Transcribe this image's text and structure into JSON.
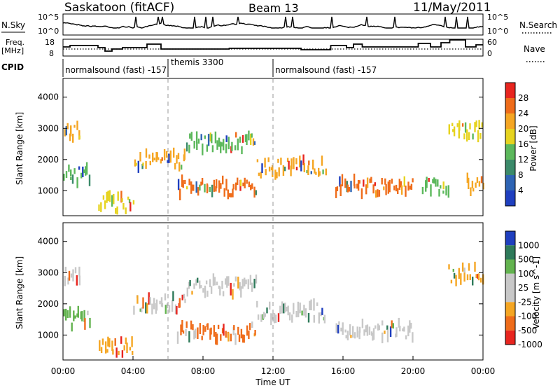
{
  "header": {
    "station": "Saskatoon (fitACF)",
    "beam": "Beam 13",
    "date": "11/May/2011"
  },
  "nsky": {
    "label": "N.Sky",
    "tick_top": "10^5",
    "tick_bottom": "10^0"
  },
  "nsearch": {
    "label": "N.Search",
    "tick_top": "10^5",
    "tick_bottom": "10^0"
  },
  "freq": {
    "label_line1": "Freq.",
    "label_line2": "[MHz]",
    "tick_top": "18",
    "tick_bottom": "8"
  },
  "nave": {
    "label": "Nave",
    "tick_top": "60",
    "tick_bottom": "0"
  },
  "cpid": {
    "label": "CPID",
    "segments": [
      "normalsound (fast) -157",
      "themis 3300",
      "normalsound (fast) -157"
    ]
  },
  "time_axis": {
    "ticks": [
      "00:00",
      "04:00",
      "08:00",
      "12:00",
      "16:00",
      "20:00",
      "00:00"
    ],
    "label": "Time UT"
  },
  "colors": {
    "power": [
      "#1f3fbf",
      "#2e64b4",
      "#3b8a6a",
      "#5cb85c",
      "#e6d31f",
      "#f5a623",
      "#ef6c1a",
      "#e8251f"
    ],
    "velocity": [
      "#e8251f",
      "#ef6c1a",
      "#f5a623",
      "#c8c8c8",
      "#c8c8c8",
      "#63b34f",
      "#2e7a5a",
      "#1f3fbf"
    ]
  },
  "chart_data": [
    {
      "type": "heatmap",
      "title": "Power",
      "ylabel": "Slant Range [km]",
      "xlabel": "Time UT",
      "xlim": [
        "00:00",
        "24:00"
      ],
      "ylim": [
        200,
        4600
      ],
      "yticks": [
        "1000",
        "2000",
        "3000",
        "4000"
      ],
      "colorbar": {
        "label": "Power [dB]",
        "ticks": [
          "4",
          "8",
          "12",
          "16",
          "20",
          "24",
          "28"
        ]
      },
      "echo_bands": [
        {
          "t_start": 0.0,
          "t_end": 1.5,
          "r_center": 1500,
          "value": 16
        },
        {
          "t_start": 0.0,
          "t_end": 1.0,
          "r_center": 2900,
          "value": 24
        },
        {
          "t_start": 2.0,
          "t_end": 4.0,
          "r_center": 600,
          "value": 20
        },
        {
          "t_start": 4.0,
          "t_end": 7.0,
          "r_center": 2000,
          "value": 24
        },
        {
          "t_start": 7.0,
          "t_end": 11.0,
          "r_center": 2550,
          "value": 16
        },
        {
          "t_start": 6.5,
          "t_end": 11.0,
          "r_center": 1100,
          "value": 28
        },
        {
          "t_start": 11.0,
          "t_end": 15.0,
          "r_center": 1750,
          "value": 24
        },
        {
          "t_start": 15.5,
          "t_end": 20.0,
          "r_center": 1150,
          "value": 28
        },
        {
          "t_start": 20.5,
          "t_end": 22.0,
          "r_center": 1150,
          "value": 16
        },
        {
          "t_start": 22.0,
          "t_end": 24.0,
          "r_center": 2950,
          "value": 20
        },
        {
          "t_start": 23.0,
          "t_end": 24.0,
          "r_center": 1200,
          "value": 24
        }
      ]
    },
    {
      "type": "heatmap",
      "title": "Velocity",
      "ylabel": "Slant Range [km]",
      "xlabel": "Time UT",
      "xlim": [
        "00:00",
        "24:00"
      ],
      "ylim": [
        200,
        4600
      ],
      "yticks": [
        "1000",
        "2000",
        "3000",
        "4000"
      ],
      "colorbar": {
        "label": "Velocity [m s^-1]",
        "ticks": [
          "1000",
          "500",
          "100",
          "25",
          "-25",
          "-100",
          "-500",
          "-1000"
        ]
      },
      "echo_bands": [
        {
          "t_start": 0.0,
          "t_end": 1.5,
          "r_center": 1500,
          "value": 100
        },
        {
          "t_start": 0.0,
          "t_end": 1.0,
          "r_center": 2900,
          "value": 0
        },
        {
          "t_start": 2.0,
          "t_end": 4.0,
          "r_center": 600,
          "value": -100
        },
        {
          "t_start": 4.0,
          "t_end": 7.0,
          "r_center": 2000,
          "value": 0
        },
        {
          "t_start": 7.0,
          "t_end": 11.0,
          "r_center": 2550,
          "value": 0
        },
        {
          "t_start": 6.5,
          "t_end": 11.0,
          "r_center": 1100,
          "value": -500
        },
        {
          "t_start": 11.0,
          "t_end": 15.0,
          "r_center": 1750,
          "value": 0
        },
        {
          "t_start": 15.5,
          "t_end": 20.0,
          "r_center": 1150,
          "value": 0
        },
        {
          "t_start": 22.0,
          "t_end": 24.0,
          "r_center": 2950,
          "value": -100
        }
      ]
    }
  ]
}
